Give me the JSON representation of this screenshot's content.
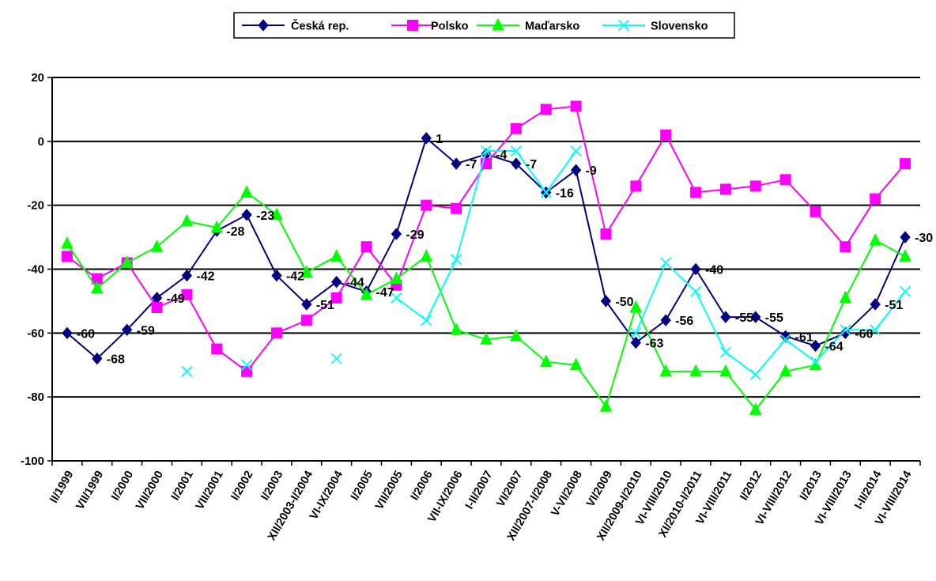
{
  "chart_data": {
    "type": "line",
    "title": "",
    "xlabel": "",
    "ylabel": "",
    "ylim": [
      -100,
      20
    ],
    "yticks": [
      20,
      0,
      -20,
      -40,
      -60,
      -80,
      -100
    ],
    "grid": "horizontal",
    "legend_position": "top",
    "categories": [
      "II/1999",
      "VII/1999",
      "I/2000",
      "VII/2000",
      "I/2001",
      "VII/2001",
      "I/2002",
      "I/2003",
      "XII/2003-I/2004",
      "VI-IX/2004",
      "I/2005",
      "VII/2005",
      "I/2006",
      "VII-IX/2006",
      "I-II/2007",
      "VI/2007",
      "XII/2007-I/2008",
      "V-VI/2008",
      "VI/2009",
      "XII/2009-I/2010",
      "VI-VIII/2010",
      "XI/2010-I/2011",
      "VI-VIII/2011",
      "I/2012",
      "VI-VIII/2012",
      "I/2013",
      "VI-VIII/2013",
      "I-II/2014",
      "VI-VIII/2014"
    ],
    "series": [
      {
        "name": "Česká rep.",
        "color": "#000080",
        "marker": "diamond",
        "values": [
          -60,
          -68,
          -59,
          -49,
          -42,
          -28,
          -23,
          -42,
          -51,
          -44,
          -47,
          -29,
          1,
          -7,
          -4,
          -7,
          -16,
          -9,
          -50,
          -63,
          -56,
          -40,
          -55,
          -55,
          -61,
          -64,
          -60,
          -51,
          -30
        ]
      },
      {
        "name": "Polsko",
        "color": "#ff00ff",
        "marker": "square",
        "values": [
          -36,
          -43,
          -38,
          -52,
          -48,
          -65,
          -72,
          -60,
          -56,
          -49,
          -33,
          -45,
          -20,
          -21,
          -7,
          4,
          10,
          11,
          -29,
          -14,
          2,
          -16,
          -15,
          -14,
          -12,
          -22,
          -33,
          -18,
          -7
        ]
      },
      {
        "name": "Maďarsko",
        "color": "#00ff00",
        "marker": "triangle",
        "values": [
          -32,
          -46,
          -38,
          -33,
          -25,
          -27,
          -16,
          -23,
          -41,
          -36,
          -48,
          -43,
          -36,
          -59,
          -62,
          -61,
          -69,
          -70,
          -83,
          -52,
          -72,
          -72,
          -72,
          -84,
          -72,
          -70,
          -49,
          -31,
          -36
        ]
      },
      {
        "name": "Slovensko",
        "color": "#00ffff",
        "marker": "x",
        "values": [
          null,
          null,
          null,
          null,
          -72,
          null,
          -70,
          null,
          null,
          -68,
          null,
          -49,
          -56,
          -37,
          -3,
          -3,
          -16,
          -3,
          null,
          -60,
          -38,
          -47,
          -66,
          -73,
          -62,
          -69,
          -59,
          -59,
          -47
        ]
      }
    ],
    "data_labels": [
      {
        "category": "II/1999",
        "text": "-60"
      },
      {
        "category": "VII/1999",
        "text": "-68"
      },
      {
        "category": "I/2000",
        "text": "-59"
      },
      {
        "category": "VII/2000",
        "text": "-49"
      },
      {
        "category": "I/2001",
        "text": "-42"
      },
      {
        "category": "VII/2001",
        "text": "-28"
      },
      {
        "category": "I/2002",
        "text": "-23"
      },
      {
        "category": "I/2003",
        "text": "-42"
      },
      {
        "category": "XII/2003-I/2004",
        "text": "-51"
      },
      {
        "category": "VI-IX/2004",
        "text": "-44"
      },
      {
        "category": "I/2005",
        "text": "-47"
      },
      {
        "category": "VII/2005",
        "text": "-29"
      },
      {
        "category": "I/2006",
        "text": "1"
      },
      {
        "category": "VII-IX/2006",
        "text": "-7"
      },
      {
        "category": "I-II/2007",
        "text": "-4"
      },
      {
        "category": "VI/2007",
        "text": "-7"
      },
      {
        "category": "XII/2007-I/2008",
        "text": "-16"
      },
      {
        "category": "V-VI/2008",
        "text": "-9"
      },
      {
        "category": "VI/2009",
        "text": "-50"
      },
      {
        "category": "XII/2009-I/2010",
        "text": "-63"
      },
      {
        "category": "VI-VIII/2010",
        "text": "-56"
      },
      {
        "category": "XI/2010-I/2011",
        "text": "-40"
      },
      {
        "category": "VI-VIII/2011",
        "text": "-55"
      },
      {
        "category": "I/2012",
        "text": "-55"
      },
      {
        "category": "VI-VIII/2012",
        "text": "-61"
      },
      {
        "category": "I/2013",
        "text": "-64"
      },
      {
        "category": "VI-VIII/2013",
        "text": "-60"
      },
      {
        "category": "I-II/2014",
        "text": "-51"
      },
      {
        "category": "VI-VIII/2014",
        "text": "-30"
      }
    ]
  }
}
